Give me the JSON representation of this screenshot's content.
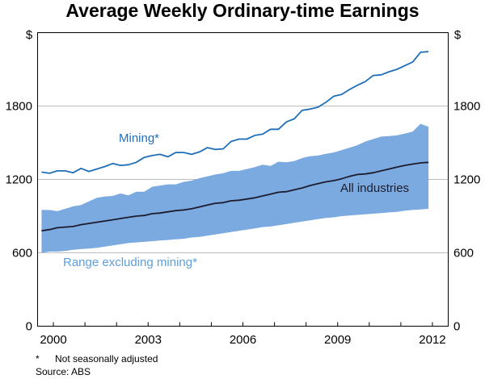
{
  "chart_data": {
    "type": "area",
    "title": "Average Weekly Ordinary-time Earnings",
    "ylabel": "$",
    "ylim": [
      0,
      2400
    ],
    "yticks": [
      0,
      600,
      1200,
      1800
    ],
    "xlim": [
      1999.5,
      2012.5
    ],
    "xticks": [
      2000,
      2003,
      2006,
      2009,
      2012
    ],
    "grid": "horizontal",
    "x": [
      1999.625,
      1999.875,
      2000.125,
      2000.375,
      2000.625,
      2000.875,
      2001.125,
      2001.375,
      2001.625,
      2001.875,
      2002.125,
      2002.375,
      2002.625,
      2002.875,
      2003.125,
      2003.375,
      2003.625,
      2003.875,
      2004.125,
      2004.375,
      2004.625,
      2004.875,
      2005.125,
      2005.375,
      2005.625,
      2005.875,
      2006.125,
      2006.375,
      2006.625,
      2006.875,
      2007.125,
      2007.375,
      2007.625,
      2007.875,
      2008.125,
      2008.375,
      2008.625,
      2008.875,
      2009.125,
      2009.375,
      2009.625,
      2009.875,
      2010.125,
      2010.375,
      2010.625,
      2010.875,
      2011.125,
      2011.375,
      2011.625,
      2011.875
    ],
    "series": [
      {
        "name": "Mining*",
        "color": "#1f6fb8",
        "values": [
          1260,
          1250,
          1270,
          1270,
          1255,
          1290,
          1265,
          1285,
          1305,
          1330,
          1315,
          1320,
          1340,
          1380,
          1395,
          1405,
          1385,
          1420,
          1420,
          1405,
          1425,
          1460,
          1445,
          1450,
          1510,
          1530,
          1530,
          1560,
          1570,
          1610,
          1610,
          1670,
          1695,
          1765,
          1775,
          1790,
          1830,
          1880,
          1895,
          1935,
          1970,
          2000,
          2050,
          2055,
          2080,
          2100,
          2130,
          2160,
          2240,
          2245
        ]
      },
      {
        "name": "All industries",
        "color": "#1c1c2e",
        "values": [
          780,
          790,
          805,
          810,
          815,
          830,
          840,
          850,
          860,
          870,
          880,
          890,
          900,
          905,
          920,
          925,
          935,
          945,
          950,
          960,
          975,
          990,
          1005,
          1010,
          1025,
          1030,
          1040,
          1050,
          1065,
          1080,
          1095,
          1100,
          1115,
          1130,
          1150,
          1165,
          1180,
          1190,
          1205,
          1225,
          1240,
          1245,
          1255,
          1270,
          1285,
          1300,
          1315,
          1325,
          1335,
          1340
        ]
      },
      {
        "name": "Range excluding mining* (upper)",
        "color": "#7aaadf",
        "values": [
          950,
          950,
          940,
          960,
          980,
          990,
          1020,
          1050,
          1060,
          1065,
          1085,
          1070,
          1100,
          1100,
          1140,
          1150,
          1160,
          1160,
          1180,
          1190,
          1210,
          1225,
          1240,
          1250,
          1270,
          1270,
          1285,
          1300,
          1320,
          1310,
          1345,
          1340,
          1350,
          1375,
          1390,
          1395,
          1410,
          1420,
          1440,
          1460,
          1480,
          1510,
          1530,
          1550,
          1555,
          1560,
          1575,
          1590,
          1655,
          1630
        ]
      },
      {
        "name": "Range excluding mining* (lower)",
        "color": "#7aaadf",
        "values": [
          600,
          610,
          610,
          615,
          625,
          630,
          635,
          640,
          650,
          660,
          670,
          680,
          685,
          690,
          695,
          700,
          705,
          710,
          715,
          725,
          730,
          740,
          750,
          760,
          770,
          780,
          790,
          800,
          810,
          815,
          825,
          835,
          845,
          855,
          865,
          875,
          885,
          890,
          900,
          905,
          910,
          915,
          920,
          925,
          930,
          935,
          945,
          950,
          955,
          960
        ]
      }
    ],
    "annotations": [
      "Mining*",
      "All industries",
      "Range excluding mining*"
    ],
    "colors": {
      "band": "#7aaadf",
      "mining": "#1f6fb8",
      "all": "#1c1c2e",
      "range_label": "#5d9ee0"
    }
  },
  "footnotes": {
    "star_mark": "*",
    "star_text": "Not seasonally adjusted",
    "source": "Source: ABS"
  }
}
